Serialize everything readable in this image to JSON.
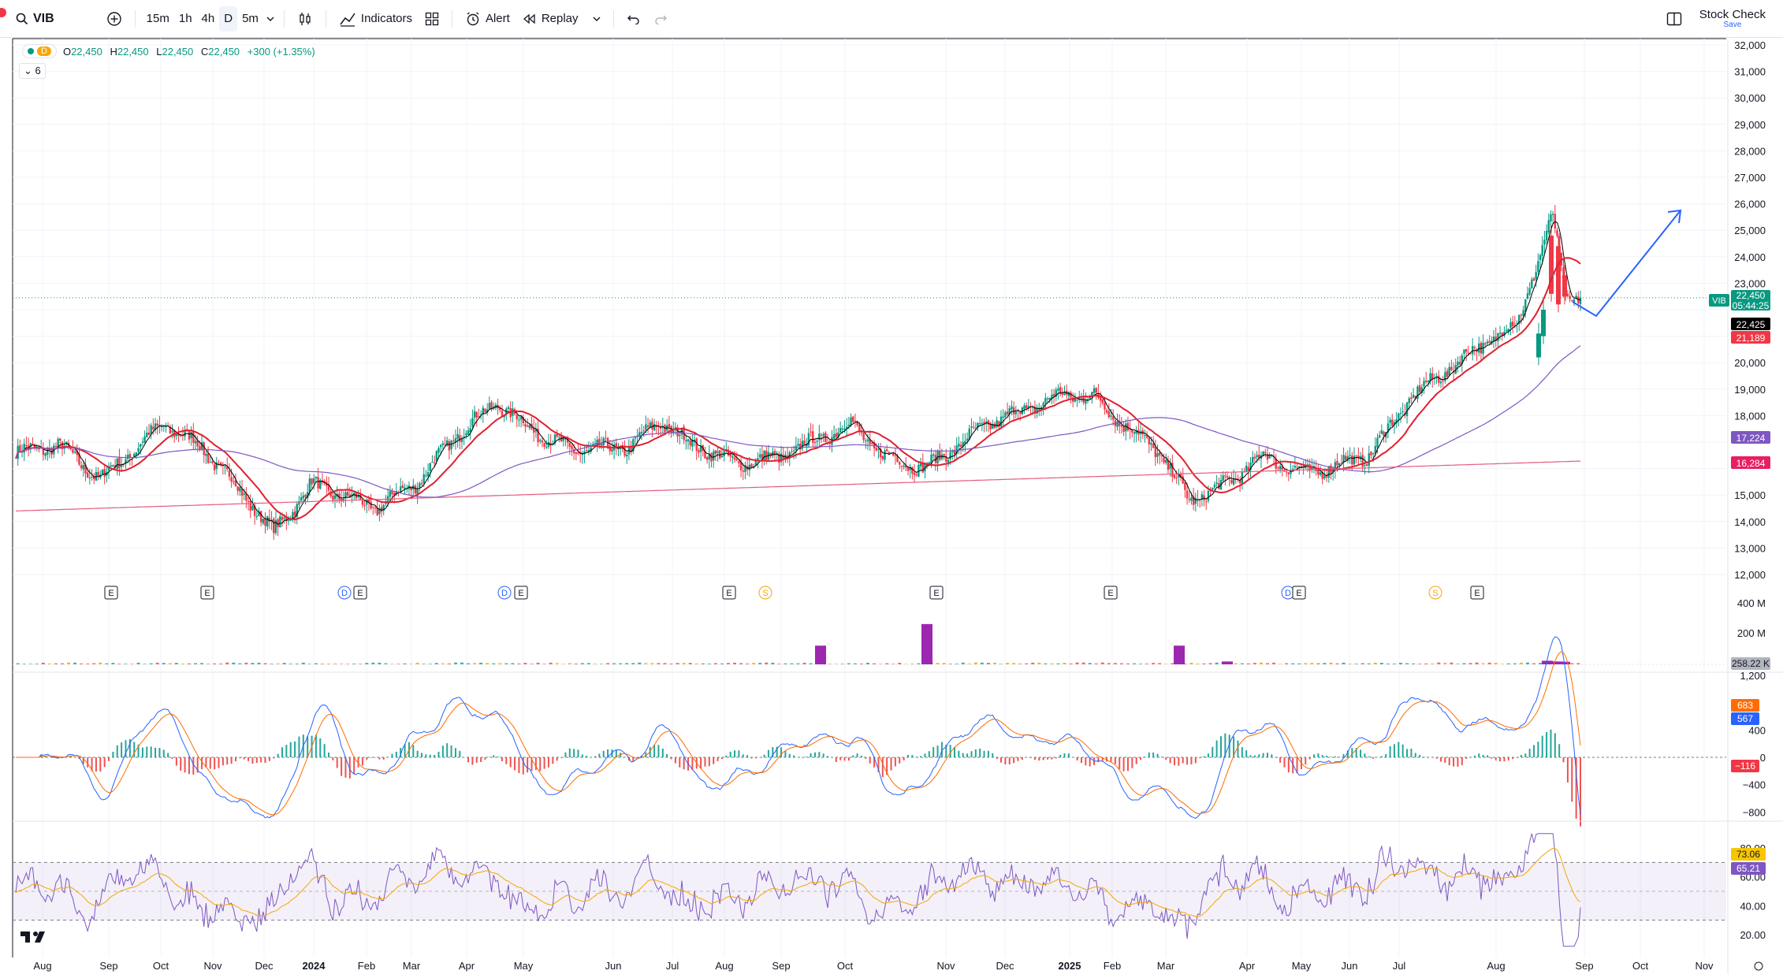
{
  "toolbar": {
    "symbol": "VIB",
    "timeframes": [
      "15m",
      "1h",
      "4h",
      "D",
      "5m"
    ],
    "active_timeframe": "D",
    "indicators_label": "Indicators",
    "alert_label": "Alert",
    "replay_label": "Replay",
    "stock_check_label": "Stock Check",
    "stock_check_sub": "Save"
  },
  "legend": {
    "interval_badge": "D",
    "open_key": "O",
    "open": "22,450",
    "high_key": "H",
    "high": "22,450",
    "low_key": "L",
    "low": "22,450",
    "close_key": "C",
    "close": "22,450",
    "change": "+300 (+1.35%)",
    "collapsed_count": "6"
  },
  "colors": {
    "up": "#089981",
    "down": "#f23645",
    "ma_fast": "#000000",
    "ma_red": "#e0202f",
    "ma_purple": "#7e57c2",
    "ma_pink": "#e35d7c",
    "rsi": "#7e57c2",
    "rsi_ma": "#f7a600",
    "macd": "#2962ff",
    "signal": "#ff6d00",
    "volume_spike": "#9c27b0",
    "projection": "#2962ff"
  },
  "price_axis": {
    "ticks": [
      "32,000",
      "31,000",
      "30,000",
      "29,000",
      "28,000",
      "27,000",
      "26,000",
      "25,000",
      "24,000",
      "23,000",
      "20,000",
      "19,000",
      "18,000",
      "15,000",
      "14,000",
      "13,000",
      "12,000"
    ],
    "badges": [
      {
        "label": "22,450",
        "sub": "05:44:25",
        "symbol": "VIB",
        "color": "#089981"
      },
      {
        "label": "22,425",
        "color": "#000000"
      },
      {
        "label": "21,189",
        "color": "#f23645"
      },
      {
        "label": "17,224",
        "color": "#7e57c2"
      },
      {
        "label": "16,284",
        "color": "#e91e63"
      }
    ]
  },
  "volume_axis": {
    "ticks": [
      "400 M",
      "200 M"
    ],
    "badge": "258.22 K"
  },
  "macd_axis": {
    "ticks": [
      "1,200",
      "400",
      "0",
      "−400",
      "−800"
    ],
    "badges": [
      {
        "label": "683",
        "color": "#ff6d00"
      },
      {
        "label": "567",
        "color": "#2962ff"
      },
      {
        "label": "−116",
        "color": "#f23645"
      }
    ]
  },
  "rsi_axis": {
    "ticks": [
      "80.00",
      "60.00",
      "40.00",
      "20.00"
    ],
    "badges": [
      {
        "label": "73.06",
        "color": "#f7c600"
      },
      {
        "label": "65.21",
        "color": "#7e57c2"
      }
    ]
  },
  "time_axis": [
    "Aug",
    "Sep",
    "Oct",
    "Nov",
    "Dec",
    "2024",
    "Feb",
    "Mar",
    "Apr",
    "May",
    "Jun",
    "Jul",
    "Aug",
    "Sep",
    "Oct",
    "Nov",
    "Dec",
    "2025",
    "Feb",
    "Mar",
    "Apr",
    "May",
    "Jun",
    "Jul",
    "Aug",
    "Sep",
    "Oct",
    "Nov"
  ],
  "events": [
    {
      "type": "E"
    },
    {
      "type": "E"
    },
    {
      "type": "D"
    },
    {
      "type": "E"
    },
    {
      "type": "D"
    },
    {
      "type": "E"
    },
    {
      "type": "E"
    },
    {
      "type": "S"
    },
    {
      "type": "E"
    },
    {
      "type": "E"
    },
    {
      "type": "D"
    },
    {
      "type": "E"
    },
    {
      "type": "S"
    },
    {
      "type": "E"
    }
  ]
}
